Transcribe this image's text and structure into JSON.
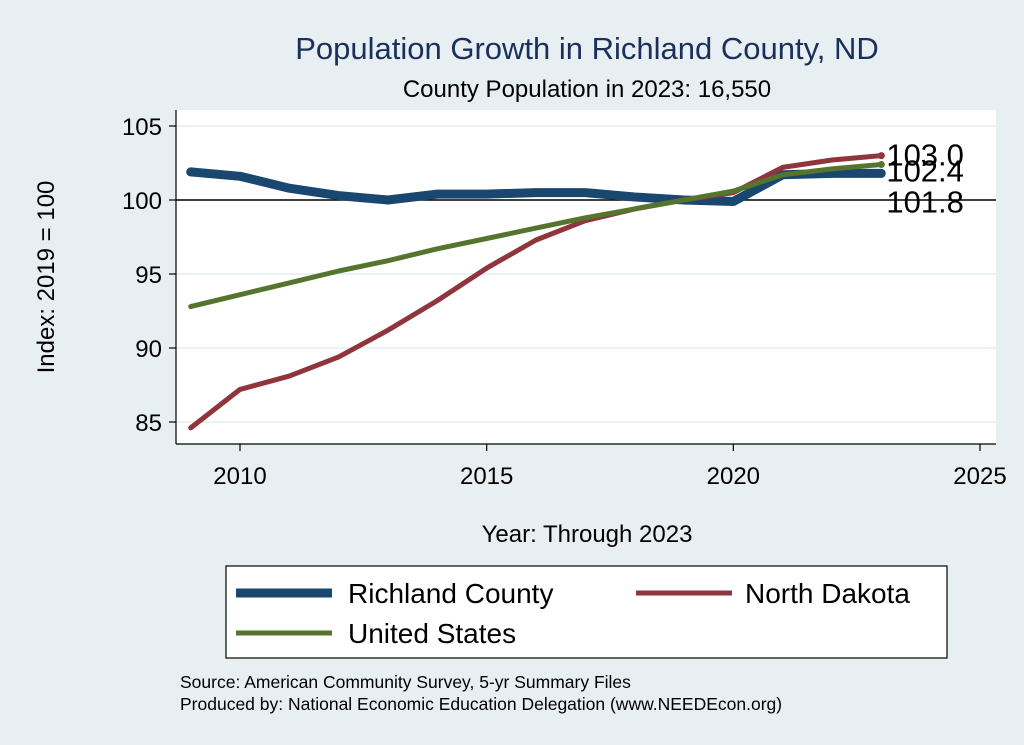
{
  "chart_data": {
    "type": "line",
    "title": "Population Growth in Richland County, ND",
    "subtitle": "County Population in 2023: 16,550",
    "xlabel": "Year: Through 2023",
    "ylabel": "Index: 2019 = 100",
    "xlim": [
      2009,
      2025
    ],
    "ylim": [
      84,
      105.5
    ],
    "x_ticks": [
      2010,
      2015,
      2020,
      2025
    ],
    "y_ticks": [
      85,
      90,
      95,
      100,
      105
    ],
    "reference_line": 100,
    "grid": true,
    "legend_position": "bottom",
    "x": [
      2009,
      2010,
      2011,
      2012,
      2013,
      2014,
      2015,
      2016,
      2017,
      2018,
      2019,
      2020,
      2021,
      2022,
      2023
    ],
    "series": [
      {
        "name": "Richland  County",
        "color": "#1a476f",
        "values": [
          101.9,
          101.6,
          100.8,
          100.3,
          100.0,
          100.4,
          100.4,
          100.5,
          100.5,
          100.2,
          100.0,
          99.9,
          101.7,
          101.8,
          101.8
        ],
        "end_label": "101.8"
      },
      {
        "name": "North Dakota",
        "color": "#90353b",
        "values": [
          84.6,
          87.2,
          88.1,
          89.4,
          91.2,
          93.2,
          95.4,
          97.3,
          98.6,
          99.4,
          100.0,
          100.5,
          102.2,
          102.7,
          103.0
        ],
        "end_label": "103.0"
      },
      {
        "name": "United States",
        "color": "#55752f",
        "values": [
          92.8,
          93.6,
          94.4,
          95.2,
          95.9,
          96.7,
          97.4,
          98.1,
          98.8,
          99.4,
          100.0,
          100.6,
          101.7,
          102.1,
          102.4
        ],
        "end_label": "102.4"
      }
    ]
  },
  "notes": {
    "source": "Source: American Community Survey, 5-yr Summary Files",
    "produced_by": "Produced by: National Economic Education Delegation (www.NEEDEcon.org)"
  }
}
